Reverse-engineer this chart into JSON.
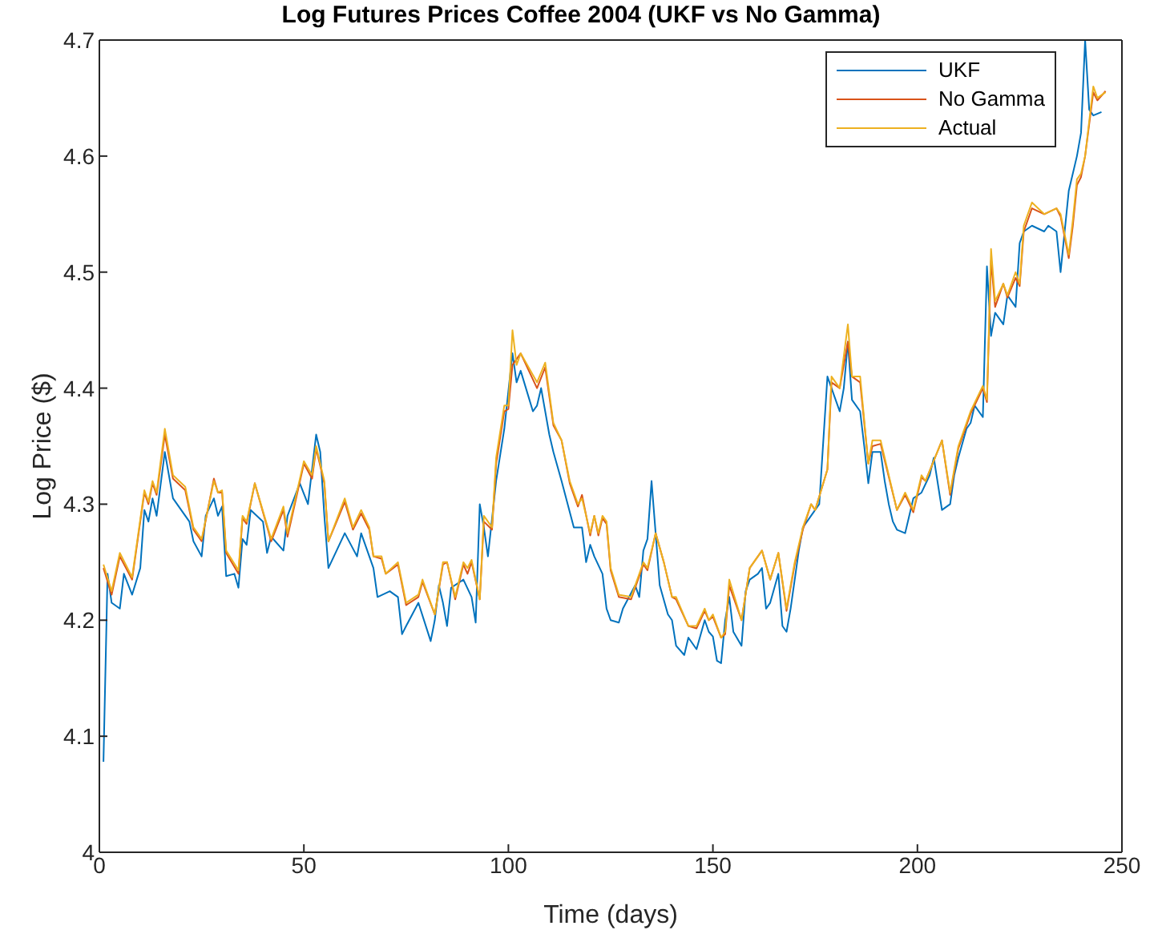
{
  "chart_data": {
    "type": "line",
    "title": "Log Futures Prices Coffee 2004 (UKF vs No Gamma)",
    "xlabel": "Time (days)",
    "ylabel": "Log Price ($)",
    "xlim": [
      0,
      250
    ],
    "xticks": [
      0,
      50,
      100,
      150,
      200,
      250
    ],
    "ylim": [
      4,
      4.7
    ],
    "yticks": [
      4,
      4.1,
      4.2,
      4.3,
      4.4,
      4.5,
      4.6,
      4.7
    ],
    "legend": "top right",
    "marker": "none",
    "line_style": "solid",
    "series": [
      {
        "name": "UKF",
        "color": "#0072bd",
        "x": [
          1,
          2,
          3,
          5,
          6,
          8,
          10,
          11,
          12,
          13,
          14,
          16,
          18,
          22,
          23,
          25,
          26,
          28,
          29,
          30,
          31,
          33,
          34,
          35,
          36,
          37,
          40,
          41,
          42,
          45,
          46,
          49,
          51,
          53,
          54,
          55,
          56,
          58,
          60,
          63,
          64,
          66,
          67,
          68,
          71,
          73,
          74,
          75,
          78,
          81,
          82,
          83,
          84,
          85,
          86,
          89,
          91,
          92,
          93,
          94,
          95,
          97,
          99,
          101,
          102,
          103,
          106,
          107,
          108,
          110,
          111,
          113,
          116,
          118,
          119,
          120,
          121,
          123,
          124,
          125,
          127,
          128,
          131,
          132,
          133,
          134,
          135,
          136,
          137,
          139,
          140,
          141,
          143,
          144,
          146,
          148,
          149,
          150,
          151,
          152,
          153,
          154,
          155,
          157,
          158,
          159,
          161,
          162,
          163,
          164,
          166,
          167,
          168,
          169,
          171,
          172,
          174,
          176,
          178,
          179,
          181,
          182,
          183,
          184,
          186,
          187,
          188,
          189,
          191,
          192,
          193,
          194,
          195,
          197,
          199,
          201,
          203,
          204,
          206,
          208,
          209,
          210,
          212,
          213,
          214,
          216,
          217,
          218,
          219,
          221,
          222,
          224,
          225,
          226,
          228,
          231,
          232,
          234,
          235,
          237,
          239,
          240,
          241,
          242,
          243,
          245
        ],
        "values": [
          4.078,
          4.24,
          4.215,
          4.21,
          4.24,
          4.222,
          4.245,
          4.295,
          4.285,
          4.305,
          4.29,
          4.345,
          4.305,
          4.285,
          4.268,
          4.255,
          4.29,
          4.305,
          4.29,
          4.298,
          4.238,
          4.24,
          4.228,
          4.27,
          4.265,
          4.295,
          4.285,
          4.258,
          4.272,
          4.26,
          4.29,
          4.318,
          4.3,
          4.36,
          4.345,
          4.29,
          4.245,
          4.26,
          4.275,
          4.255,
          4.275,
          4.255,
          4.245,
          4.22,
          4.225,
          4.22,
          4.188,
          4.195,
          4.215,
          4.182,
          4.2,
          4.23,
          4.215,
          4.195,
          4.228,
          4.235,
          4.22,
          4.198,
          4.3,
          4.28,
          4.255,
          4.32,
          4.365,
          4.43,
          4.405,
          4.415,
          4.38,
          4.385,
          4.4,
          4.36,
          4.345,
          4.32,
          4.28,
          4.28,
          4.25,
          4.265,
          4.255,
          4.24,
          4.21,
          4.2,
          4.198,
          4.21,
          4.23,
          4.22,
          4.26,
          4.27,
          4.32,
          4.275,
          4.23,
          4.205,
          4.2,
          4.178,
          4.17,
          4.185,
          4.175,
          4.2,
          4.19,
          4.186,
          4.165,
          4.163,
          4.2,
          4.22,
          4.19,
          4.178,
          4.225,
          4.235,
          4.24,
          4.245,
          4.21,
          4.215,
          4.24,
          4.195,
          4.19,
          4.21,
          4.26,
          4.28,
          4.29,
          4.3,
          4.41,
          4.4,
          4.38,
          4.4,
          4.44,
          4.39,
          4.38,
          4.35,
          4.318,
          4.345,
          4.345,
          4.32,
          4.3,
          4.285,
          4.278,
          4.275,
          4.305,
          4.31,
          4.325,
          4.34,
          4.295,
          4.3,
          4.325,
          4.34,
          4.365,
          4.37,
          4.385,
          4.375,
          4.505,
          4.445,
          4.465,
          4.455,
          4.48,
          4.47,
          4.525,
          4.535,
          4.54,
          4.535,
          4.54,
          4.535,
          4.5,
          4.57,
          4.6,
          4.62,
          4.7,
          4.64,
          4.635,
          4.638
        ]
      },
      {
        "name": "No Gamma",
        "color": "#d95319",
        "x": [
          1,
          3,
          5,
          8,
          11,
          12,
          13,
          14,
          16,
          18,
          21,
          23,
          25,
          28,
          29,
          30,
          31,
          34,
          35,
          36,
          38,
          42,
          45,
          46,
          50,
          52,
          53,
          55,
          56,
          60,
          62,
          64,
          66,
          67,
          69,
          70,
          73,
          75,
          78,
          79,
          82,
          84,
          85,
          87,
          89,
          90,
          91,
          93,
          94,
          96,
          97,
          99,
          100,
          101,
          102,
          103,
          107,
          109,
          111,
          113,
          115,
          117,
          118,
          120,
          121,
          122,
          123,
          124,
          125,
          127,
          130,
          133,
          134,
          136,
          138,
          140,
          141,
          144,
          146,
          148,
          149,
          150,
          152,
          153,
          154,
          157,
          159,
          162,
          164,
          166,
          168,
          170,
          172,
          174,
          175,
          178,
          179,
          181,
          183,
          184,
          186,
          188,
          189,
          191,
          195,
          197,
          199,
          201,
          202,
          206,
          208,
          210,
          213,
          216,
          217,
          218,
          219,
          221,
          222,
          224,
          225,
          226,
          228,
          231,
          234,
          235,
          237,
          238,
          239,
          240,
          241,
          243,
          244,
          246
        ],
        "values": [
          4.245,
          4.222,
          4.255,
          4.235,
          4.31,
          4.3,
          4.318,
          4.308,
          4.36,
          4.322,
          4.312,
          4.278,
          4.268,
          4.322,
          4.31,
          4.31,
          4.258,
          4.24,
          4.288,
          4.283,
          4.318,
          4.268,
          4.295,
          4.272,
          4.335,
          4.322,
          4.348,
          4.318,
          4.268,
          4.302,
          4.278,
          4.292,
          4.278,
          4.255,
          4.253,
          4.24,
          4.248,
          4.213,
          4.22,
          4.233,
          4.205,
          4.248,
          4.25,
          4.218,
          4.248,
          4.24,
          4.25,
          4.218,
          4.285,
          4.278,
          4.335,
          4.38,
          4.382,
          4.42,
          4.425,
          4.43,
          4.4,
          4.418,
          4.368,
          4.355,
          4.318,
          4.298,
          4.308,
          4.273,
          4.29,
          4.273,
          4.288,
          4.283,
          4.243,
          4.22,
          4.218,
          4.248,
          4.243,
          4.275,
          4.25,
          4.22,
          4.218,
          4.195,
          4.193,
          4.208,
          4.2,
          4.203,
          4.185,
          4.188,
          4.23,
          4.2,
          4.245,
          4.26,
          4.235,
          4.258,
          4.208,
          4.248,
          4.278,
          4.3,
          4.295,
          4.33,
          4.405,
          4.4,
          4.44,
          4.41,
          4.405,
          4.335,
          4.35,
          4.352,
          4.295,
          4.308,
          4.293,
          4.323,
          4.32,
          4.355,
          4.308,
          4.348,
          4.378,
          4.4,
          4.388,
          4.51,
          4.47,
          4.49,
          4.478,
          4.495,
          4.488,
          4.535,
          4.555,
          4.55,
          4.555,
          4.548,
          4.512,
          4.54,
          4.575,
          4.582,
          4.6,
          4.655,
          4.648,
          4.656
        ]
      },
      {
        "name": "Actual",
        "color": "#edb120",
        "x": [
          1,
          3,
          5,
          8,
          11,
          12,
          13,
          14,
          16,
          18,
          21,
          23,
          25,
          28,
          29,
          30,
          31,
          34,
          35,
          36,
          38,
          42,
          45,
          46,
          50,
          52,
          53,
          55,
          56,
          60,
          62,
          64,
          66,
          67,
          69,
          70,
          73,
          75,
          78,
          79,
          82,
          84,
          85,
          87,
          89,
          90,
          91,
          93,
          94,
          96,
          97,
          99,
          100,
          101,
          102,
          103,
          107,
          109,
          111,
          113,
          115,
          117,
          118,
          120,
          121,
          122,
          123,
          124,
          125,
          127,
          130,
          133,
          134,
          136,
          138,
          140,
          141,
          144,
          146,
          148,
          149,
          150,
          152,
          153,
          154,
          157,
          159,
          162,
          164,
          166,
          168,
          170,
          172,
          174,
          175,
          178,
          179,
          181,
          183,
          184,
          186,
          188,
          189,
          191,
          195,
          197,
          199,
          201,
          202,
          206,
          208,
          210,
          213,
          216,
          217,
          218,
          219,
          221,
          222,
          224,
          225,
          226,
          228,
          231,
          234,
          235,
          237,
          238,
          239,
          240,
          241,
          243,
          244,
          246
        ],
        "values": [
          4.248,
          4.225,
          4.258,
          4.237,
          4.312,
          4.302,
          4.32,
          4.31,
          4.365,
          4.325,
          4.315,
          4.28,
          4.27,
          4.32,
          4.31,
          4.312,
          4.26,
          4.243,
          4.29,
          4.285,
          4.318,
          4.27,
          4.298,
          4.275,
          4.337,
          4.325,
          4.35,
          4.32,
          4.268,
          4.305,
          4.28,
          4.295,
          4.28,
          4.255,
          4.255,
          4.24,
          4.25,
          4.215,
          4.222,
          4.235,
          4.205,
          4.25,
          4.25,
          4.22,
          4.25,
          4.245,
          4.252,
          4.218,
          4.29,
          4.28,
          4.34,
          4.385,
          4.385,
          4.45,
          4.42,
          4.43,
          4.405,
          4.422,
          4.37,
          4.355,
          4.32,
          4.3,
          4.305,
          4.275,
          4.29,
          4.275,
          4.29,
          4.285,
          4.245,
          4.222,
          4.22,
          4.25,
          4.245,
          4.275,
          4.25,
          4.22,
          4.22,
          4.195,
          4.195,
          4.21,
          4.2,
          4.205,
          4.185,
          4.19,
          4.235,
          4.2,
          4.245,
          4.26,
          4.235,
          4.258,
          4.21,
          4.25,
          4.28,
          4.3,
          4.295,
          4.33,
          4.41,
          4.4,
          4.455,
          4.41,
          4.41,
          4.335,
          4.355,
          4.355,
          4.295,
          4.31,
          4.295,
          4.325,
          4.32,
          4.355,
          4.31,
          4.35,
          4.38,
          4.402,
          4.39,
          4.52,
          4.475,
          4.49,
          4.48,
          4.5,
          4.49,
          4.54,
          4.56,
          4.55,
          4.555,
          4.55,
          4.515,
          4.545,
          4.58,
          4.585,
          4.6,
          4.66,
          4.65,
          4.655
        ]
      }
    ]
  }
}
